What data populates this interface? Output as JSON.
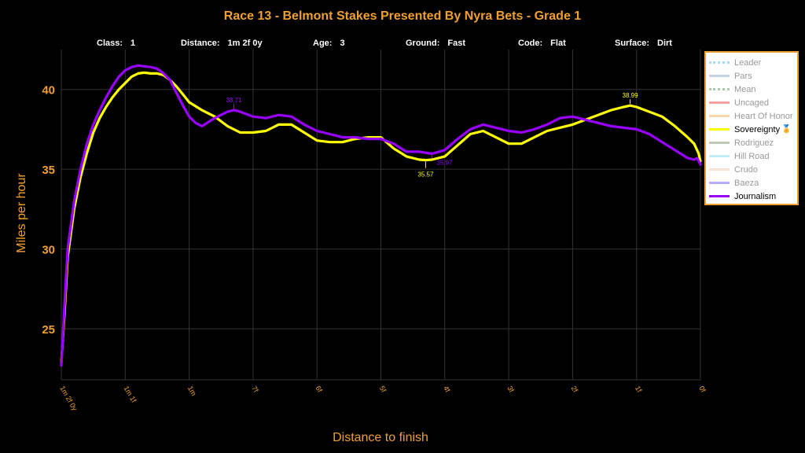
{
  "title": "Race 13 - Belmont Stakes Presented By Nyra Bets - Grade 1",
  "info": [
    {
      "key": "Class:",
      "value": "1"
    },
    {
      "key": "Distance:",
      "value": "1m 2f 0y"
    },
    {
      "key": "Age:",
      "value": "3"
    },
    {
      "key": "Ground:",
      "value": "Fast"
    },
    {
      "key": "Code:",
      "value": "Flat"
    },
    {
      "key": "Surface:",
      "value": "Dirt"
    }
  ],
  "colors": {
    "accent": "#f0a030",
    "background": "#000000",
    "grid": "#333333",
    "sovereignty": "#ffff00",
    "journalism": "#9900ff"
  },
  "legend": [
    {
      "label": "Leader",
      "color": "#87cefa",
      "style": "dotted",
      "active": false
    },
    {
      "label": "Pars",
      "color": "#b0c4de",
      "style": "solid",
      "active": false
    },
    {
      "label": "Mean",
      "color": "#8fbc8f",
      "style": "dotted",
      "active": false
    },
    {
      "label": "Uncaged",
      "color": "#f08080",
      "style": "solid",
      "active": false
    },
    {
      "label": "Heart Of Honor",
      "color": "#f4c890",
      "style": "solid",
      "active": false
    },
    {
      "label": "Sovereignty",
      "color": "#ffff00",
      "style": "solid",
      "active": true,
      "medal": "🏅"
    },
    {
      "label": "Rodriguez",
      "color": "#a8b8a0",
      "style": "solid",
      "active": false
    },
    {
      "label": "Hill Road",
      "color": "#aee8f0",
      "style": "solid",
      "active": false
    },
    {
      "label": "Crudo",
      "color": "#f8d8c8",
      "style": "solid",
      "active": false
    },
    {
      "label": "Baeza",
      "color": "#9a90ff",
      "style": "solid",
      "active": false
    },
    {
      "label": "Journalism",
      "color": "#9900ff",
      "style": "solid",
      "active": true
    }
  ],
  "chart_data": {
    "type": "line",
    "title": "Race 13 - Belmont Stakes Presented By Nyra Bets - Grade 1",
    "xlabel": "Distance to finish",
    "ylabel": "Miles per hour",
    "x_unit": "furlongs to finish",
    "xlim": [
      10,
      0
    ],
    "ylim": [
      21.8,
      42.5
    ],
    "x_ticks": [
      {
        "x": 10,
        "label": "1m 2f 0y"
      },
      {
        "x": 9,
        "label": "1m 1f"
      },
      {
        "x": 8,
        "label": "1m"
      },
      {
        "x": 7,
        "label": "7f"
      },
      {
        "x": 6,
        "label": "6f"
      },
      {
        "x": 5,
        "label": "5f"
      },
      {
        "x": 4,
        "label": "4f"
      },
      {
        "x": 3,
        "label": "3f"
      },
      {
        "x": 2,
        "label": "2f"
      },
      {
        "x": 1,
        "label": "1f"
      },
      {
        "x": 0,
        "label": "0f"
      }
    ],
    "y_ticks": [
      25,
      30,
      35,
      40
    ],
    "grid": true,
    "legend_position": "right",
    "series": [
      {
        "name": "Sovereignty",
        "color": "#ffff00",
        "points": [
          [
            10,
            22.9
          ],
          [
            9.95,
            26.0
          ],
          [
            9.9,
            29.5
          ],
          [
            9.8,
            32.5
          ],
          [
            9.7,
            34.5
          ],
          [
            9.6,
            36.0
          ],
          [
            9.5,
            37.3
          ],
          [
            9.4,
            38.2
          ],
          [
            9.3,
            38.9
          ],
          [
            9.2,
            39.5
          ],
          [
            9.1,
            40.0
          ],
          [
            9.0,
            40.4
          ],
          [
            8.9,
            40.8
          ],
          [
            8.8,
            41.0
          ],
          [
            8.7,
            41.05
          ],
          [
            8.6,
            41.0
          ],
          [
            8.5,
            41.0
          ],
          [
            8.4,
            40.9
          ],
          [
            8.3,
            40.6
          ],
          [
            8.2,
            40.2
          ],
          [
            8.1,
            39.7
          ],
          [
            8.0,
            39.2
          ],
          [
            7.8,
            38.7
          ],
          [
            7.6,
            38.3
          ],
          [
            7.4,
            37.7
          ],
          [
            7.2,
            37.3
          ],
          [
            7.0,
            37.3
          ],
          [
            6.8,
            37.4
          ],
          [
            6.6,
            37.8
          ],
          [
            6.4,
            37.8
          ],
          [
            6.2,
            37.3
          ],
          [
            6.0,
            36.8
          ],
          [
            5.8,
            36.7
          ],
          [
            5.6,
            36.7
          ],
          [
            5.4,
            36.9
          ],
          [
            5.2,
            37.0
          ],
          [
            5.0,
            37.0
          ],
          [
            4.8,
            36.3
          ],
          [
            4.6,
            35.8
          ],
          [
            4.4,
            35.6
          ],
          [
            4.3,
            35.57
          ],
          [
            4.2,
            35.6
          ],
          [
            4.0,
            35.8
          ],
          [
            3.8,
            36.5
          ],
          [
            3.6,
            37.2
          ],
          [
            3.4,
            37.4
          ],
          [
            3.2,
            37.0
          ],
          [
            3.0,
            36.6
          ],
          [
            2.8,
            36.6
          ],
          [
            2.6,
            37.0
          ],
          [
            2.4,
            37.4
          ],
          [
            2.2,
            37.6
          ],
          [
            2.0,
            37.8
          ],
          [
            1.8,
            38.1
          ],
          [
            1.6,
            38.4
          ],
          [
            1.4,
            38.7
          ],
          [
            1.2,
            38.9
          ],
          [
            1.1,
            38.99
          ],
          [
            1.0,
            38.9
          ],
          [
            0.8,
            38.6
          ],
          [
            0.6,
            38.3
          ],
          [
            0.4,
            37.7
          ],
          [
            0.2,
            37.0
          ],
          [
            0.1,
            36.6
          ],
          [
            0.03,
            36.0
          ],
          [
            0,
            35.5
          ]
        ]
      },
      {
        "name": "Journalism",
        "color": "#9900ff",
        "points": [
          [
            10,
            22.7
          ],
          [
            9.95,
            26.5
          ],
          [
            9.9,
            30.0
          ],
          [
            9.8,
            33.0
          ],
          [
            9.7,
            35.0
          ],
          [
            9.6,
            36.6
          ],
          [
            9.5,
            37.8
          ],
          [
            9.4,
            38.7
          ],
          [
            9.3,
            39.5
          ],
          [
            9.2,
            40.2
          ],
          [
            9.1,
            40.8
          ],
          [
            9.0,
            41.2
          ],
          [
            8.9,
            41.4
          ],
          [
            8.8,
            41.5
          ],
          [
            8.7,
            41.45
          ],
          [
            8.6,
            41.4
          ],
          [
            8.5,
            41.3
          ],
          [
            8.4,
            41.0
          ],
          [
            8.3,
            40.6
          ],
          [
            8.2,
            39.8
          ],
          [
            8.1,
            39.0
          ],
          [
            8.0,
            38.3
          ],
          [
            7.9,
            37.9
          ],
          [
            7.8,
            37.7
          ],
          [
            7.6,
            38.2
          ],
          [
            7.4,
            38.6
          ],
          [
            7.3,
            38.71
          ],
          [
            7.2,
            38.6
          ],
          [
            7.0,
            38.3
          ],
          [
            6.8,
            38.2
          ],
          [
            6.6,
            38.4
          ],
          [
            6.4,
            38.3
          ],
          [
            6.2,
            37.8
          ],
          [
            6.0,
            37.4
          ],
          [
            5.8,
            37.2
          ],
          [
            5.6,
            37.0
          ],
          [
            5.4,
            37.0
          ],
          [
            5.2,
            36.9
          ],
          [
            5.0,
            36.9
          ],
          [
            4.8,
            36.6
          ],
          [
            4.6,
            36.1
          ],
          [
            4.4,
            36.1
          ],
          [
            4.2,
            35.97
          ],
          [
            4.0,
            36.2
          ],
          [
            3.8,
            36.9
          ],
          [
            3.6,
            37.5
          ],
          [
            3.4,
            37.8
          ],
          [
            3.2,
            37.6
          ],
          [
            3.0,
            37.4
          ],
          [
            2.8,
            37.3
          ],
          [
            2.6,
            37.5
          ],
          [
            2.4,
            37.8
          ],
          [
            2.2,
            38.2
          ],
          [
            2.0,
            38.3
          ],
          [
            1.8,
            38.1
          ],
          [
            1.6,
            37.9
          ],
          [
            1.4,
            37.7
          ],
          [
            1.2,
            37.6
          ],
          [
            1.0,
            37.5
          ],
          [
            0.8,
            37.2
          ],
          [
            0.6,
            36.7
          ],
          [
            0.4,
            36.2
          ],
          [
            0.2,
            35.7
          ],
          [
            0.1,
            35.6
          ],
          [
            0.05,
            35.7
          ],
          [
            0,
            35.3
          ]
        ]
      }
    ],
    "annotations": [
      {
        "series": "Journalism",
        "x": 7.3,
        "y": 38.71,
        "label": "38.71",
        "placement": "above",
        "color": "#9900ff"
      },
      {
        "series": "Sovereignty",
        "x": 4.3,
        "y": 35.57,
        "label": "35.57",
        "placement": "below",
        "color": "#ffff00"
      },
      {
        "series": "Journalism",
        "x": 4.2,
        "y": 35.97,
        "label": "35.97",
        "placement": "below-right",
        "color": "#9900ff"
      },
      {
        "series": "Sovereignty",
        "x": 1.1,
        "y": 38.99,
        "label": "38.99",
        "placement": "above",
        "color": "#ffff00"
      }
    ]
  }
}
